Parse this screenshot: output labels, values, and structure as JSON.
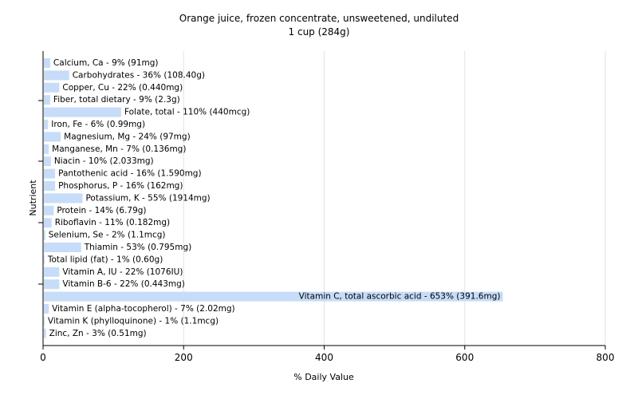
{
  "chart_data": {
    "type": "bar",
    "orientation": "horizontal",
    "title": "Orange juice, frozen concentrate, unsweetened, undiluted",
    "subtitle": "1 cup (284g)",
    "xlabel": "% Daily Value",
    "ylabel": "Nutrient",
    "xlim": [
      0,
      800
    ],
    "xticks": [
      0,
      200,
      400,
      600,
      800
    ],
    "grid": true,
    "bar_color": "#c6dcf8",
    "categories": [
      "Calcium, Ca - 9% (91mg)",
      "Carbohydrates - 36% (108.40g)",
      "Copper, Cu - 22% (0.440mg)",
      "Fiber, total dietary - 9% (2.3g)",
      "Folate, total - 110% (440mcg)",
      "Iron, Fe - 6% (0.99mg)",
      "Magnesium, Mg - 24% (97mg)",
      "Manganese, Mn - 7% (0.136mg)",
      "Niacin - 10% (2.033mg)",
      "Pantothenic acid - 16% (1.590mg)",
      "Phosphorus, P - 16% (162mg)",
      "Potassium, K - 55% (1914mg)",
      "Protein - 14% (6.79g)",
      "Riboflavin - 11% (0.182mg)",
      "Selenium, Se - 2% (1.1mcg)",
      "Thiamin - 53% (0.795mg)",
      "Total lipid (fat) - 1% (0.60g)",
      "Vitamin A, IU - 22% (1076IU)",
      "Vitamin B-6 - 22% (0.443mg)",
      "Vitamin C, total ascorbic acid - 653% (391.6mg)",
      "Vitamin E (alpha-tocopherol) - 7% (2.02mg)",
      "Vitamin K (phylloquinone) - 1% (1.1mcg)",
      "Zinc, Zn - 3% (0.51mg)"
    ],
    "values": [
      9,
      36,
      22,
      9,
      110,
      6,
      24,
      7,
      10,
      16,
      16,
      55,
      14,
      11,
      2,
      53,
      1,
      22,
      22,
      653,
      7,
      1,
      3
    ]
  }
}
